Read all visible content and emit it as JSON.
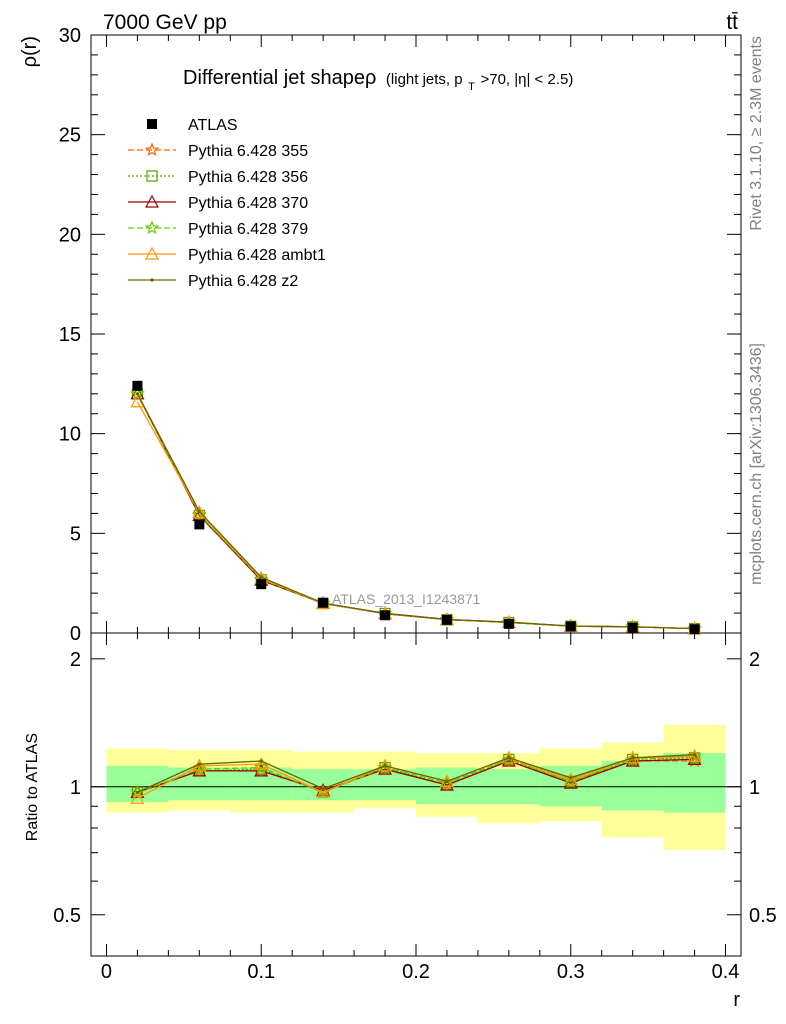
{
  "header": {
    "energy_label": "7000 GeV pp",
    "process_label": "tt̄"
  },
  "side_text": {
    "rivet": "Rivet 3.1.10, ≥ 2.3M events",
    "mcplots": "mcplots.cern.ch [arXiv:1306.3436]"
  },
  "main_plot": {
    "title_main": "Differential jet shapeρ",
    "title_sub": "(light jets, p",
    "title_sub_sub": "T",
    "title_sub_rest": ">70, |η| < 2.5)",
    "ylabel": "ρ(r)",
    "watermark": "ATLAS_2013_I1243871",
    "yticks": [
      "0",
      "5",
      "10",
      "15",
      "20",
      "25",
      "30"
    ]
  },
  "ratio_plot": {
    "ylabel": "Ratio to ATLAS",
    "yticks": [
      "0.5",
      "1",
      "2"
    ]
  },
  "x_axis": {
    "label": "r",
    "ticks": [
      "0",
      "0.1",
      "0.2",
      "0.3",
      "0.4"
    ]
  },
  "legend": [
    {
      "label": "ATLAS",
      "color": "#000000",
      "marker": "filled-square",
      "style": "none"
    },
    {
      "label": "Pythia 6.428 355",
      "color": "#ff6600",
      "marker": "star",
      "style": "dashed"
    },
    {
      "label": "Pythia 6.428 356",
      "color": "#669900",
      "marker": "open-square",
      "style": "dotted"
    },
    {
      "label": "Pythia 6.428 370",
      "color": "#990000",
      "marker": "open-triangle",
      "style": "solid"
    },
    {
      "label": "Pythia 6.428 379",
      "color": "#66cc00",
      "marker": "star",
      "style": "dashed"
    },
    {
      "label": "Pythia 6.428 ambt1",
      "color": "#ff9900",
      "marker": "open-triangle",
      "style": "solid"
    },
    {
      "label": "Pythia 6.428 z2",
      "color": "#666600",
      "marker": "dot",
      "style": "solid"
    }
  ],
  "chart_data": {
    "type": "line",
    "x": [
      0.02,
      0.06,
      0.1,
      0.14,
      0.18,
      0.22,
      0.26,
      0.3,
      0.34,
      0.38
    ],
    "x_edges": [
      0.0,
      0.04,
      0.08,
      0.12,
      0.16,
      0.2,
      0.24,
      0.28,
      0.32,
      0.36,
      0.4
    ],
    "xlabel": "r",
    "ylabel": "ρ(r)",
    "xlim": [
      -0.01,
      0.41
    ],
    "ylim": [
      0,
      30
    ],
    "ratio_ylim": [
      0.4,
      2.3
    ],
    "ratio_log_scale": true,
    "data": {
      "name": "ATLAS",
      "values": [
        12.4,
        5.45,
        2.45,
        1.52,
        0.89,
        0.66,
        0.46,
        0.33,
        0.27,
        0.19
      ]
    },
    "series": [
      {
        "name": "Pythia 6.428 355",
        "values": [
          12.0,
          5.9,
          2.65,
          1.5,
          0.97,
          0.67,
          0.53,
          0.34,
          0.31,
          0.22
        ]
      },
      {
        "name": "Pythia 6.428 356",
        "values": [
          12.0,
          5.9,
          2.67,
          1.48,
          0.98,
          0.67,
          0.53,
          0.34,
          0.31,
          0.22
        ]
      },
      {
        "name": "Pythia 6.428 370",
        "values": [
          12.0,
          5.9,
          2.65,
          1.49,
          0.97,
          0.67,
          0.53,
          0.34,
          0.31,
          0.22
        ]
      },
      {
        "name": "Pythia 6.428 379",
        "values": [
          12.0,
          5.95,
          2.7,
          1.47,
          0.98,
          0.67,
          0.53,
          0.34,
          0.31,
          0.22
        ]
      },
      {
        "name": "Pythia 6.428 ambt1",
        "values": [
          11.6,
          6.05,
          2.75,
          1.48,
          0.99,
          0.68,
          0.54,
          0.34,
          0.31,
          0.22
        ]
      },
      {
        "name": "Pythia 6.428 z2",
        "values": [
          12.0,
          6.1,
          2.8,
          1.5,
          0.99,
          0.68,
          0.54,
          0.35,
          0.31,
          0.22
        ]
      }
    ],
    "ratio_series": [
      {
        "name": "Pythia 6.428 355",
        "values": [
          0.97,
          1.09,
          1.09,
          0.98,
          1.1,
          1.01,
          1.15,
          1.03,
          1.15,
          1.15
        ]
      },
      {
        "name": "Pythia 6.428 356",
        "values": [
          0.97,
          1.09,
          1.1,
          0.97,
          1.11,
          1.01,
          1.16,
          1.03,
          1.16,
          1.17
        ]
      },
      {
        "name": "Pythia 6.428 370",
        "values": [
          0.97,
          1.09,
          1.09,
          0.98,
          1.1,
          1.01,
          1.15,
          1.02,
          1.15,
          1.16
        ]
      },
      {
        "name": "Pythia 6.428 379",
        "values": [
          0.97,
          1.1,
          1.11,
          0.97,
          1.11,
          1.02,
          1.16,
          1.03,
          1.16,
          1.18
        ]
      },
      {
        "name": "Pythia 6.428 ambt1",
        "values": [
          0.94,
          1.12,
          1.13,
          0.97,
          1.12,
          1.03,
          1.17,
          1.04,
          1.17,
          1.18
        ]
      },
      {
        "name": "Pythia 6.428 z2",
        "values": [
          0.97,
          1.13,
          1.15,
          0.99,
          1.12,
          1.03,
          1.17,
          1.05,
          1.17,
          1.19
        ]
      }
    ],
    "band_stat": [
      [
        0.92,
        1.12
      ],
      [
        0.93,
        1.11
      ],
      [
        0.93,
        1.11
      ],
      [
        0.93,
        1.1
      ],
      [
        0.93,
        1.1
      ],
      [
        0.91,
        1.11
      ],
      [
        0.91,
        1.1
      ],
      [
        0.9,
        1.12
      ],
      [
        0.88,
        1.15
      ],
      [
        0.87,
        1.2
      ]
    ],
    "band_total": [
      [
        0.87,
        1.23
      ],
      [
        0.88,
        1.22
      ],
      [
        0.87,
        1.22
      ],
      [
        0.87,
        1.21
      ],
      [
        0.89,
        1.21
      ],
      [
        0.85,
        1.2
      ],
      [
        0.82,
        1.2
      ],
      [
        0.83,
        1.23
      ],
      [
        0.76,
        1.27
      ],
      [
        0.71,
        1.4
      ]
    ],
    "band_colors": {
      "stat": "#99ff99",
      "total": "#ffff99"
    },
    "grid": false
  }
}
